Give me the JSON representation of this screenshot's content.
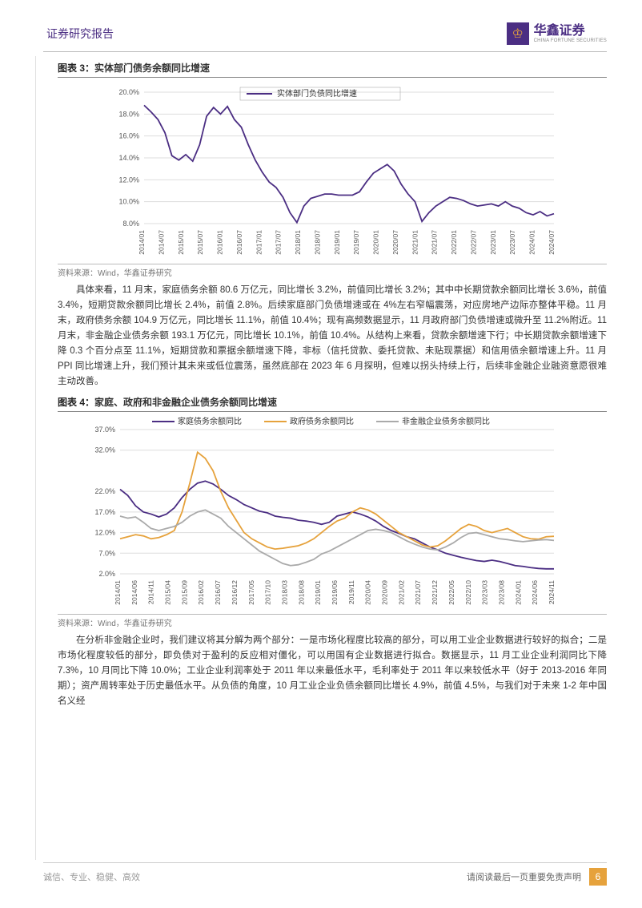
{
  "header": {
    "title": "证券研究报告",
    "logo_cn": "华鑫证券",
    "logo_en": "CHINA FORTUNE SECURITIES"
  },
  "chart3": {
    "title_prefix": "图表 3：",
    "title": "实体部门债务余额同比增速",
    "source": "资料来源：Wind，华鑫证券研究",
    "legend": "实体部门负债同比增速",
    "type": "line",
    "ylim": [
      8,
      20
    ],
    "ytick_step": 2,
    "ytick_labels": [
      "8.0%",
      "10.0%",
      "12.0%",
      "14.0%",
      "16.0%",
      "18.0%",
      "20.0%"
    ],
    "x_labels": [
      "2014/01",
      "2014/07",
      "2015/01",
      "2015/07",
      "2016/01",
      "2016/07",
      "2017/01",
      "2017/07",
      "2018/01",
      "2018/07",
      "2019/01",
      "2019/07",
      "2020/01",
      "2020/07",
      "2021/01",
      "2021/07",
      "2022/01",
      "2022/07",
      "2023/01",
      "2023/07",
      "2024/01",
      "2024/07"
    ],
    "line_color": "#4b2e83",
    "grid_color": "#dddddd",
    "background_color": "#ffffff",
    "values": [
      18.8,
      18.2,
      17.5,
      16.3,
      14.2,
      13.8,
      14.3,
      13.7,
      15.2,
      17.8,
      18.6,
      18.0,
      18.7,
      17.5,
      16.8,
      15.2,
      13.8,
      12.7,
      11.8,
      11.3,
      10.4,
      9.0,
      8.1,
      9.6,
      10.3,
      10.5,
      10.7,
      10.7,
      10.6,
      10.6,
      10.6,
      10.9,
      11.8,
      12.6,
      13.0,
      13.4,
      12.8,
      11.6,
      10.7,
      10.0,
      8.2,
      9.0,
      9.6,
      10.0,
      10.4,
      10.3,
      10.1,
      9.8,
      9.6,
      9.7,
      9.8,
      9.6,
      10.0,
      9.6,
      9.4,
      9.0,
      8.8,
      9.1,
      8.7,
      8.9
    ]
  },
  "para1": "具体来看，11 月末，家庭债务余额 80.6 万亿元，同比增长 3.2%，前值同比增长 3.2%；其中中长期贷款余额同比增长 3.6%，前值 3.4%，短期贷款余额同比增长 2.4%，前值 2.8%。后续家庭部门负债增速或在 4%左右窄幅震荡，对应房地产边际亦整体平稳。11 月末，政府债务余额 104.9 万亿元，同比增长 11.1%，前值 10.4%；现有高频数据显示，11 月政府部门负债增速或微升至 11.2%附近。11 月末，非金融企业债务余额 193.1 万亿元，同比增长 10.1%，前值 10.4%。从结构上来看，贷款余额增速下行；中长期贷款余额增速下降 0.3 个百分点至 11.1%，短期贷款和票据余额增速下降，非标（信托贷款、委托贷款、未贴现票据）和信用债余额增速上升。11 月 PPI 同比增速上升，我们预计其未来或低位震荡，虽然底部在 2023 年 6 月探明，但难以拐头持续上行，后续非金融企业融资意愿很难主动改善。",
  "chart4": {
    "title_prefix": "图表 4：",
    "title": "家庭、政府和非金融企业债务余额同比增速",
    "source": "资料来源：Wind，华鑫证券研究",
    "type": "line",
    "legend": [
      "家庭债务余额同比",
      "政府债务余额同比",
      "非金融企业债务余额同比"
    ],
    "colors": [
      "#4b2e83",
      "#e6a23c",
      "#aaaaaa"
    ],
    "grid_color": "#dddddd",
    "ylim": [
      2,
      37
    ],
    "ytick_labels": [
      "2.0%",
      "7.0%",
      "12.0%",
      "17.0%",
      "22.0%",
      "32.0%",
      "37.0%"
    ],
    "ytick_vals": [
      2,
      7,
      12,
      17,
      22,
      32,
      37
    ],
    "x_labels": [
      "2014/01",
      "2014/06",
      "2014/11",
      "2015/04",
      "2015/09",
      "2016/02",
      "2016/07",
      "2016/12",
      "2017/05",
      "2017/10",
      "2018/03",
      "2018/08",
      "2019/01",
      "2019/06",
      "2019/11",
      "2020/04",
      "2020/09",
      "2021/02",
      "2021/07",
      "2021/12",
      "2022/05",
      "2022/10",
      "2023/03",
      "2023/08",
      "2024/01",
      "2024/06",
      "2024/11"
    ],
    "series_household": [
      22.5,
      21.0,
      18.5,
      17.0,
      16.5,
      15.8,
      16.5,
      18.0,
      20.5,
      22.5,
      24.0,
      24.5,
      23.8,
      22.5,
      21.0,
      20.0,
      18.8,
      18.0,
      17.2,
      16.8,
      16.0,
      15.7,
      15.5,
      15.0,
      14.8,
      14.5,
      14.0,
      14.5,
      16.0,
      16.5,
      17.0,
      16.5,
      15.8,
      14.8,
      13.5,
      12.5,
      11.8,
      11.0,
      10.5,
      9.5,
      8.5,
      7.8,
      7.0,
      6.5,
      6.0,
      5.6,
      5.2,
      5.0,
      5.3,
      5.0,
      4.5,
      4.0,
      3.8,
      3.5,
      3.3,
      3.2,
      3.2
    ],
    "series_gov": [
      10.5,
      11.0,
      11.5,
      11.2,
      10.5,
      10.8,
      11.5,
      12.5,
      17.0,
      24.0,
      31.5,
      30.0,
      27.0,
      22.0,
      18.0,
      15.0,
      12.0,
      10.5,
      9.5,
      8.5,
      8.0,
      8.2,
      8.5,
      8.8,
      9.5,
      10.5,
      12.0,
      13.5,
      14.8,
      15.5,
      17.0,
      18.0,
      17.5,
      16.5,
      15.0,
      13.5,
      12.0,
      11.0,
      10.0,
      9.0,
      8.5,
      8.8,
      10.0,
      11.5,
      13.0,
      14.0,
      13.5,
      12.5,
      12.0,
      12.5,
      13.0,
      12.0,
      11.0,
      10.5,
      10.4,
      11.0,
      11.1
    ],
    "series_corp": [
      16.0,
      15.5,
      15.8,
      14.5,
      13.0,
      12.5,
      13.0,
      13.5,
      14.5,
      16.0,
      17.0,
      17.5,
      16.5,
      15.5,
      13.5,
      12.0,
      10.5,
      9.0,
      7.5,
      6.5,
      5.5,
      4.5,
      4.0,
      4.2,
      4.8,
      5.5,
      6.8,
      7.5,
      8.5,
      9.5,
      10.5,
      11.5,
      12.5,
      12.8,
      12.5,
      12.0,
      11.0,
      10.0,
      9.2,
      8.5,
      8.0,
      7.8,
      8.5,
      9.5,
      10.8,
      11.8,
      12.0,
      11.5,
      11.0,
      10.5,
      10.3,
      10.0,
      9.8,
      10.0,
      10.2,
      10.3,
      10.1
    ]
  },
  "para2": "在分析非金融企业时，我们建议将其分解为两个部分：一是市场化程度比较高的部分，可以用工业企业数据进行较好的拟合；二是市场化程度较低的部分，即负债对于盈利的反应相对僵化，可以用国有企业数据进行拟合。数据显示，11 月工业企业利润同比下降 7.3%，10 月同比下降 10.0%；工业企业利润率处于 2011 年以来最低水平，毛利率处于 2011 年以来较低水平（好于 2013-2016 年同期）；资产周转率处于历史最低水平。从负债的角度，10 月工业企业负债余额同比增长 4.9%，前值 4.5%，与我们对于未来 1-2 年中国名义经",
  "footer": {
    "left": "诚信、专业、稳健、高效",
    "right": "请阅读最后一页重要免责声明",
    "page": "6"
  }
}
